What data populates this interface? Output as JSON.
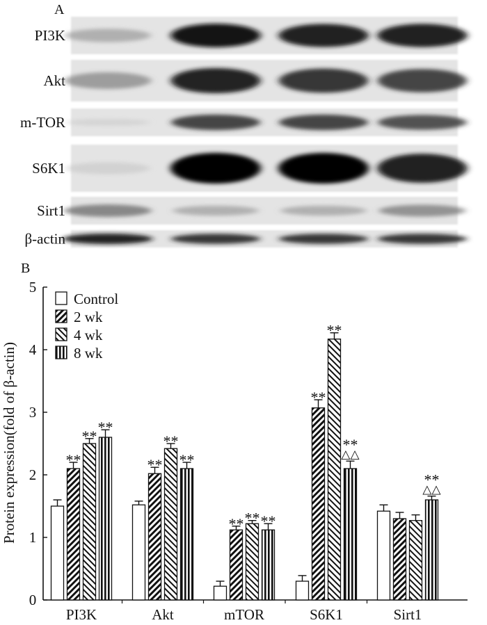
{
  "panel_a": {
    "letter": "A",
    "rows": [
      {
        "label": "PI3K",
        "intensities": [
          0.35,
          0.95,
          0.92,
          0.93
        ]
      },
      {
        "label": "Akt",
        "intensities": [
          0.45,
          0.9,
          0.85,
          0.8
        ]
      },
      {
        "label": "m-TOR",
        "intensities": [
          0.1,
          0.8,
          0.8,
          0.75
        ]
      },
      {
        "label": "S6K1",
        "intensities": [
          0.12,
          1.0,
          1.0,
          0.92
        ]
      },
      {
        "label": "Sirt1",
        "intensities": [
          0.55,
          0.35,
          0.35,
          0.5
        ]
      },
      {
        "label": "β-actin",
        "intensities": [
          0.9,
          0.85,
          0.85,
          0.85
        ]
      }
    ]
  },
  "panel_b": {
    "letter": "B"
  },
  "chart_data": {
    "type": "bar",
    "title": "",
    "xlabel": "",
    "ylabel": "Protein expression(fold of β-actin)",
    "ylim": [
      0,
      5
    ],
    "yticks": [
      "0",
      "1",
      "2",
      "3",
      "4",
      "5"
    ],
    "categories": [
      "PI3K",
      "Akt",
      "mTOR",
      "S6K1",
      "Sirt1"
    ],
    "legend_position": "top-left",
    "series": [
      {
        "name": "Control",
        "pattern": "white",
        "values": [
          1.5,
          1.52,
          0.22,
          0.3,
          1.42
        ],
        "errors": [
          0.1,
          0.06,
          0.08,
          0.09,
          0.1
        ]
      },
      {
        "name": "2 wk",
        "pattern": "hatch-back",
        "values": [
          2.1,
          2.02,
          1.12,
          3.07,
          1.3
        ],
        "errors": [
          0.1,
          0.1,
          0.06,
          0.13,
          0.1
        ]
      },
      {
        "name": "4 wk",
        "pattern": "hatch-fwd",
        "values": [
          2.5,
          2.42,
          1.22,
          4.17,
          1.27
        ],
        "errors": [
          0.08,
          0.08,
          0.05,
          0.1,
          0.09
        ]
      },
      {
        "name": "8 wk",
        "pattern": "vertical",
        "values": [
          2.6,
          2.1,
          1.12,
          2.1,
          1.6
        ],
        "errors": [
          0.12,
          0.1,
          0.1,
          0.12,
          0.06
        ]
      }
    ],
    "annotations": [
      {
        "category": 0,
        "series": 1,
        "lines": [
          "**"
        ]
      },
      {
        "category": 0,
        "series": 2,
        "lines": [
          "**"
        ]
      },
      {
        "category": 0,
        "series": 3,
        "lines": [
          "**"
        ]
      },
      {
        "category": 1,
        "series": 1,
        "lines": [
          "**"
        ]
      },
      {
        "category": 1,
        "series": 2,
        "lines": [
          "**"
        ]
      },
      {
        "category": 1,
        "series": 3,
        "lines": [
          "**"
        ]
      },
      {
        "category": 2,
        "series": 1,
        "lines": [
          "**"
        ]
      },
      {
        "category": 2,
        "series": 2,
        "lines": [
          "**"
        ]
      },
      {
        "category": 2,
        "series": 3,
        "lines": [
          "**"
        ]
      },
      {
        "category": 3,
        "series": 1,
        "lines": [
          "**"
        ]
      },
      {
        "category": 3,
        "series": 2,
        "lines": [
          "**"
        ]
      },
      {
        "category": 3,
        "series": 3,
        "lines": [
          "**",
          "△△"
        ]
      },
      {
        "category": 4,
        "series": 3,
        "lines": [
          "**",
          "△△"
        ]
      }
    ]
  }
}
